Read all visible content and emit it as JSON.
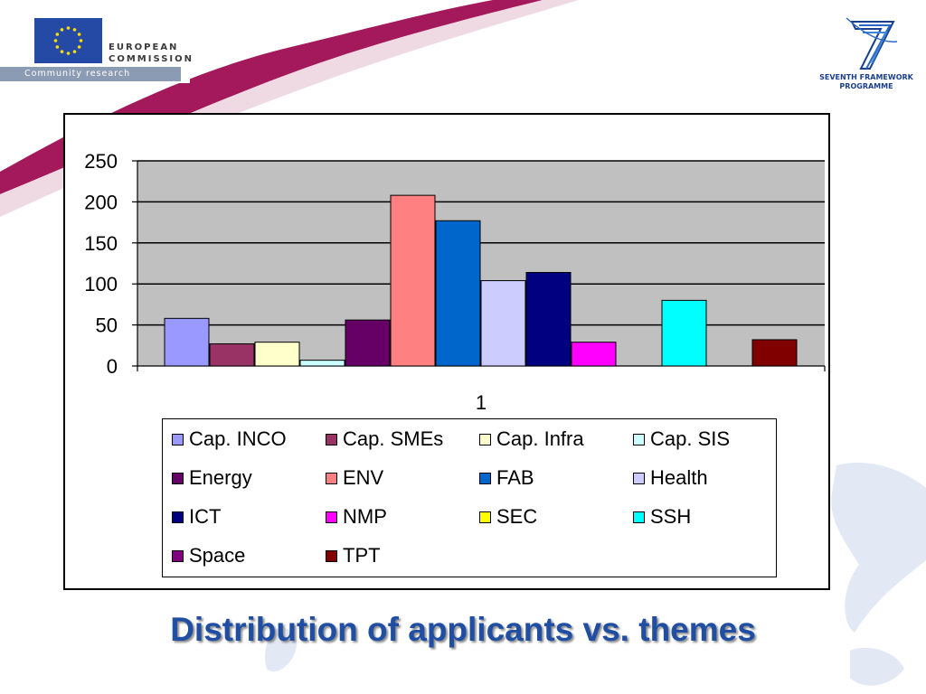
{
  "header": {
    "eu_line1": "EUROPEAN",
    "eu_line2": "COMMISSION",
    "eu_sub": "Community research",
    "fp7_line1": "SEVENTH FRAMEWORK",
    "fp7_line2": "PROGRAMME"
  },
  "colors": {
    "title": "#1f4ea3",
    "plot_background": "#c0c0c0",
    "swoosh": "#a3195b"
  },
  "slide_title": "Distribution of applicants vs. themes",
  "chart_data": {
    "type": "bar",
    "categories": [
      "1"
    ],
    "ylim": [
      0,
      250
    ],
    "yticks": [
      0,
      50,
      100,
      150,
      200,
      250
    ],
    "grid": true,
    "legend_position": "bottom",
    "xlabel": "",
    "ylabel": "",
    "series": [
      {
        "name": "Cap. INCO",
        "values": [
          58
        ],
        "color": "#9999ff"
      },
      {
        "name": "Cap. SMEs",
        "values": [
          27
        ],
        "color": "#993366"
      },
      {
        "name": "Cap. Infra",
        "values": [
          29
        ],
        "color": "#ffffcc"
      },
      {
        "name": "Cap. SIS",
        "values": [
          7
        ],
        "color": "#ccffff"
      },
      {
        "name": "Energy",
        "values": [
          56
        ],
        "color": "#660066"
      },
      {
        "name": "ENV",
        "values": [
          208
        ],
        "color": "#ff8080"
      },
      {
        "name": "FAB",
        "values": [
          177
        ],
        "color": "#0066cc"
      },
      {
        "name": "Health",
        "values": [
          104
        ],
        "color": "#ccccff"
      },
      {
        "name": "ICT",
        "values": [
          114
        ],
        "color": "#000080"
      },
      {
        "name": "NMP",
        "values": [
          29
        ],
        "color": "#ff00ff"
      },
      {
        "name": "SEC",
        "values": [
          0
        ],
        "color": "#ffff00"
      },
      {
        "name": "SSH",
        "values": [
          80
        ],
        "color": "#00ffff"
      },
      {
        "name": "Space",
        "values": [
          0
        ],
        "color": "#800080"
      },
      {
        "name": "TPT",
        "values": [
          32
        ],
        "color": "#800000"
      }
    ]
  }
}
